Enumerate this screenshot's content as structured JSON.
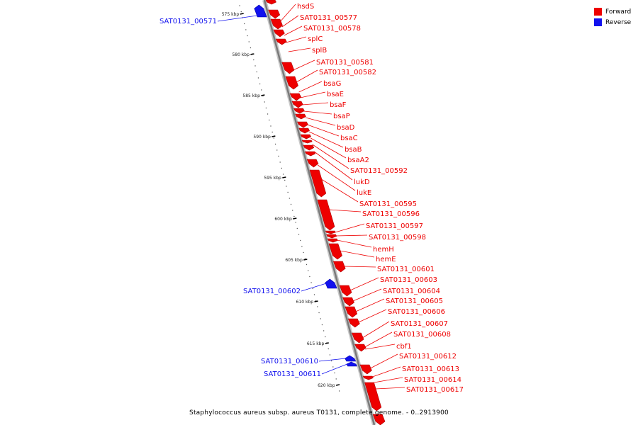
{
  "colors": {
    "forward": "#ee0000",
    "reverse": "#1111ee"
  },
  "legend": [
    {
      "label": "Forward",
      "color": "#ee0000"
    },
    {
      "label": "Reverse",
      "color": "#1111ee"
    }
  ],
  "caption": "Staphylococcus aureus subsp. aureus T0131, complete genome. - 0..2913900",
  "scale": {
    "unit": "kbp",
    "ticks": [
      575,
      580,
      585,
      590,
      595,
      600,
      605,
      610,
      615,
      620
    ]
  },
  "genes": [
    {
      "name": "hsdS",
      "strand": "forward"
    },
    {
      "name": "SAT0131_00571",
      "strand": "reverse"
    },
    {
      "name": "SAT0131_00577",
      "strand": "forward"
    },
    {
      "name": "SAT0131_00578",
      "strand": "forward"
    },
    {
      "name": "splC",
      "strand": "forward"
    },
    {
      "name": "splB",
      "strand": "forward"
    },
    {
      "name": "SAT0131_00581",
      "strand": "forward"
    },
    {
      "name": "SAT0131_00582",
      "strand": "forward"
    },
    {
      "name": "bsaG",
      "strand": "forward"
    },
    {
      "name": "bsaE",
      "strand": "forward"
    },
    {
      "name": "bsaF",
      "strand": "forward"
    },
    {
      "name": "bsaP",
      "strand": "forward"
    },
    {
      "name": "bsaD",
      "strand": "forward"
    },
    {
      "name": "bsaC",
      "strand": "forward"
    },
    {
      "name": "bsaB",
      "strand": "forward"
    },
    {
      "name": "bsaA2",
      "strand": "forward"
    },
    {
      "name": "SAT0131_00592",
      "strand": "forward"
    },
    {
      "name": "lukD",
      "strand": "forward"
    },
    {
      "name": "lukE",
      "strand": "forward"
    },
    {
      "name": "SAT0131_00595",
      "strand": "forward"
    },
    {
      "name": "SAT0131_00596",
      "strand": "forward"
    },
    {
      "name": "SAT0131_00597",
      "strand": "forward"
    },
    {
      "name": "SAT0131_00598",
      "strand": "forward"
    },
    {
      "name": "hemH",
      "strand": "forward"
    },
    {
      "name": "hemE",
      "strand": "forward"
    },
    {
      "name": "SAT0131_00601",
      "strand": "forward"
    },
    {
      "name": "SAT0131_00602",
      "strand": "reverse"
    },
    {
      "name": "SAT0131_00603",
      "strand": "forward"
    },
    {
      "name": "SAT0131_00604",
      "strand": "forward"
    },
    {
      "name": "SAT0131_00605",
      "strand": "forward"
    },
    {
      "name": "SAT0131_00606",
      "strand": "forward"
    },
    {
      "name": "SAT0131_00607",
      "strand": "forward"
    },
    {
      "name": "SAT0131_00608",
      "strand": "forward"
    },
    {
      "name": "cbf1",
      "strand": "forward"
    },
    {
      "name": "SAT0131_00610",
      "strand": "reverse"
    },
    {
      "name": "SAT0131_00611",
      "strand": "reverse"
    },
    {
      "name": "SAT0131_00612",
      "strand": "forward"
    },
    {
      "name": "SAT0131_00613",
      "strand": "forward"
    },
    {
      "name": "SAT0131_00614",
      "strand": "forward"
    },
    {
      "name": "SAT0131_00617",
      "strand": "forward"
    }
  ]
}
